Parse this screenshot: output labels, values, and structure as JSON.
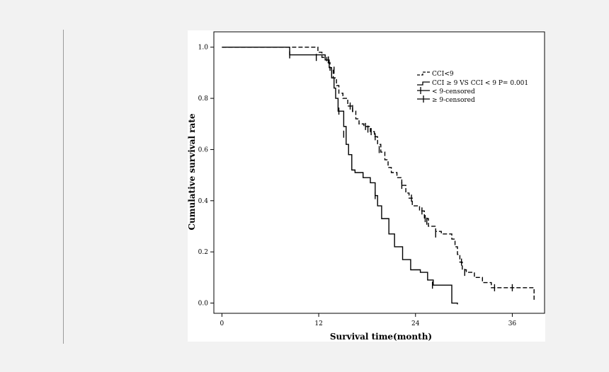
{
  "chart_data": {
    "type": "line",
    "subtype": "kaplan-meier",
    "xlabel": "Survival time(month)",
    "ylabel": "Cumulative survival rate",
    "xlim": [
      -1,
      40
    ],
    "ylim": [
      -0.04,
      1.06
    ],
    "xticks": [
      0,
      12,
      24,
      36
    ],
    "yticks": [
      0.0,
      0.2,
      0.4,
      0.6,
      0.8,
      1.0
    ],
    "ytick_labels": [
      "0.0",
      "0.2",
      "0.4",
      "0.6",
      "0.8",
      "1.0"
    ],
    "legend_position": "top-right",
    "legend": {
      "cci_lt9": "CCI<9",
      "cci_ge9": "CCI ≥ 9 VS CCI < 9 P= 0.001",
      "cens_lt9": "<  9-censored",
      "cens_ge9": "≥  9-censored"
    },
    "series": [
      {
        "name": "CCI<9",
        "style": "dashed",
        "steps": [
          [
            0,
            1.0
          ],
          [
            11.9,
            0.98
          ],
          [
            12.4,
            0.96
          ],
          [
            13,
            0.94
          ],
          [
            13.4,
            0.91
          ],
          [
            13.8,
            0.88
          ],
          [
            14.2,
            0.85
          ],
          [
            14.5,
            0.82
          ],
          [
            15,
            0.8
          ],
          [
            15.6,
            0.77
          ],
          [
            16.2,
            0.75
          ],
          [
            16.6,
            0.72
          ],
          [
            17,
            0.7
          ],
          [
            17.6,
            0.69
          ],
          [
            18.4,
            0.67
          ],
          [
            18.9,
            0.65
          ],
          [
            19.3,
            0.62
          ],
          [
            19.7,
            0.59
          ],
          [
            20.2,
            0.56
          ],
          [
            20.6,
            0.53
          ],
          [
            21,
            0.51
          ],
          [
            21.7,
            0.49
          ],
          [
            22.3,
            0.46
          ],
          [
            22.8,
            0.43
          ],
          [
            23.2,
            0.41
          ],
          [
            23.6,
            0.38
          ],
          [
            24.5,
            0.36
          ],
          [
            25.1,
            0.33
          ],
          [
            25.6,
            0.3
          ],
          [
            26.5,
            0.28
          ],
          [
            27.2,
            0.27
          ],
          [
            28.5,
            0.25
          ],
          [
            28.9,
            0.22
          ],
          [
            29.2,
            0.19
          ],
          [
            29.5,
            0.16
          ],
          [
            29.8,
            0.13
          ],
          [
            30.3,
            0.12
          ],
          [
            31.3,
            0.1
          ],
          [
            32.3,
            0.08
          ],
          [
            33.4,
            0.06
          ],
          [
            38.7,
            0.03
          ],
          [
            38.7,
            0.01
          ]
        ],
        "end_x": 38.7,
        "censored": [
          [
            11.7,
            0.96
          ],
          [
            13.2,
            0.95
          ],
          [
            13.9,
            0.91
          ],
          [
            15.9,
            0.77
          ],
          [
            16.2,
            0.76
          ],
          [
            17.8,
            0.69
          ],
          [
            18.1,
            0.68
          ],
          [
            18.5,
            0.67
          ],
          [
            19,
            0.65
          ],
          [
            19.5,
            0.6
          ],
          [
            22.3,
            0.46
          ],
          [
            23.5,
            0.41
          ],
          [
            24.8,
            0.36
          ],
          [
            25.2,
            0.33
          ],
          [
            25.4,
            0.32
          ],
          [
            26.5,
            0.27
          ],
          [
            29.7,
            0.16
          ],
          [
            30.1,
            0.12
          ],
          [
            33.8,
            0.06
          ],
          [
            36,
            0.06
          ]
        ]
      },
      {
        "name": "CCI≥9",
        "style": "solid",
        "steps": [
          [
            0,
            1.0
          ],
          [
            8.4,
            0.97
          ],
          [
            12.8,
            0.95
          ],
          [
            13.3,
            0.92
          ],
          [
            13.6,
            0.88
          ],
          [
            13.9,
            0.84
          ],
          [
            14.1,
            0.8
          ],
          [
            14.4,
            0.75
          ],
          [
            15.1,
            0.69
          ],
          [
            15.4,
            0.62
          ],
          [
            15.7,
            0.58
          ],
          [
            16.1,
            0.52
          ],
          [
            16.5,
            0.51
          ],
          [
            17.5,
            0.49
          ],
          [
            18.4,
            0.47
          ],
          [
            19,
            0.42
          ],
          [
            19.3,
            0.38
          ],
          [
            19.8,
            0.33
          ],
          [
            20.7,
            0.27
          ],
          [
            21.4,
            0.22
          ],
          [
            22.4,
            0.17
          ],
          [
            23.4,
            0.13
          ],
          [
            24.6,
            0.12
          ],
          [
            25.5,
            0.09
          ],
          [
            26.2,
            0.07
          ],
          [
            28.5,
            0.02
          ],
          [
            28.5,
            0.0
          ]
        ],
        "end_x": 29.2,
        "censored": [
          [
            8.4,
            0.97
          ],
          [
            14.5,
            0.75
          ],
          [
            15.1,
            0.66
          ],
          [
            19,
            0.42
          ],
          [
            26.1,
            0.07
          ]
        ]
      }
    ]
  }
}
